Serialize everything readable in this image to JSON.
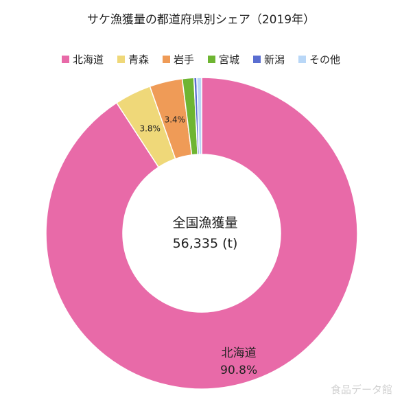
{
  "title": "サケ漁獲量の都道府県別シェア（2019年）",
  "center": {
    "line1": "全国漁獲量",
    "line2": "56,335 (t)"
  },
  "watermark": "食品データ館",
  "chart_data": {
    "type": "pie",
    "categories": [
      "北海道",
      "青森",
      "岩手",
      "宮城",
      "新潟",
      "その他"
    ],
    "values": [
      90.8,
      3.8,
      3.4,
      1.2,
      0.3,
      0.5
    ],
    "colors": [
      "#e86aa8",
      "#efd879",
      "#ef9b57",
      "#6eb532",
      "#5a6ed1",
      "#b9d7f7"
    ],
    "data_labels": [
      {
        "category": "北海道",
        "value_text": "90.8%",
        "show_name": true
      },
      {
        "category": "青森",
        "value_text": "3.8%",
        "show_name": false
      },
      {
        "category": "岩手",
        "value_text": "3.4%",
        "show_name": false
      }
    ],
    "legend_position": "top"
  }
}
